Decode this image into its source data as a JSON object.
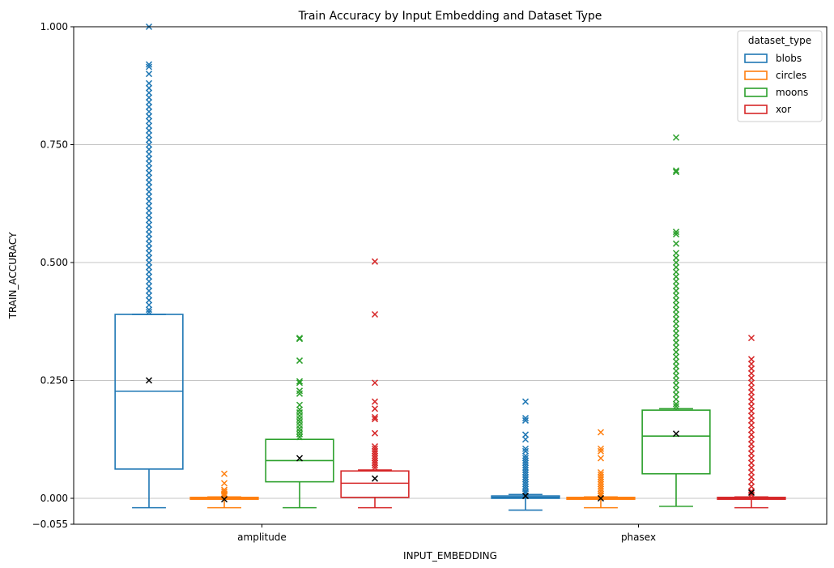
{
  "chart_data": {
    "type": "box",
    "title": "Train Accuracy by Input Embedding and Dataset Type",
    "xlabel": "INPUT_EMBEDDING",
    "ylabel": "TRAIN_ACCURACY",
    "ylim": [
      -0.055,
      1.0
    ],
    "yticks": [
      {
        "value": -0.055,
        "label": "−0.055"
      },
      {
        "value": 0.0,
        "label": "0.000"
      },
      {
        "value": 0.25,
        "label": "0.250"
      },
      {
        "value": 0.5,
        "label": "0.500"
      },
      {
        "value": 0.75,
        "label": "0.750"
      },
      {
        "value": 1.0,
        "label": "1.000"
      }
    ],
    "horizontal_grid": true,
    "categories": [
      "amplitude",
      "phasex"
    ],
    "legend": {
      "title": "dataset_type",
      "placement": "top-right"
    },
    "series": [
      {
        "name": "blobs",
        "color": "#1f77b4",
        "boxes": [
          {
            "whisker_low": -0.02,
            "q1": 0.062,
            "median": 0.227,
            "q3": 0.39,
            "whisker_high": 0.39,
            "mean": 0.25,
            "outliers": [
              1.0,
              0.92,
              0.915,
              0.9,
              0.88,
              0.87,
              0.86,
              0.85,
              0.84,
              0.83,
              0.82,
              0.81,
              0.8,
              0.79,
              0.78,
              0.77,
              0.76,
              0.75,
              0.74,
              0.73,
              0.72,
              0.71,
              0.7,
              0.69,
              0.68,
              0.67,
              0.66,
              0.65,
              0.64,
              0.63,
              0.62,
              0.61,
              0.6,
              0.59,
              0.58,
              0.57,
              0.56,
              0.55,
              0.54,
              0.53,
              0.52,
              0.51,
              0.5,
              0.49,
              0.48,
              0.47,
              0.46,
              0.45,
              0.44,
              0.43,
              0.42,
              0.41,
              0.4,
              0.395
            ]
          },
          {
            "whisker_low": -0.025,
            "q1": 0.0,
            "median": 0.002,
            "q3": 0.005,
            "whisker_high": 0.008,
            "mean": 0.005,
            "outliers": [
              0.205,
              0.17,
              0.165,
              0.135,
              0.125,
              0.105,
              0.1,
              0.09,
              0.085,
              0.08,
              0.075,
              0.07,
              0.065,
              0.06,
              0.055,
              0.05,
              0.045,
              0.04,
              0.035,
              0.03,
              0.025,
              0.02,
              0.015,
              0.012
            ]
          }
        ]
      },
      {
        "name": "circles",
        "color": "#ff7f0e",
        "boxes": [
          {
            "whisker_low": -0.02,
            "q1": -0.002,
            "median": 0.0,
            "q3": 0.002,
            "whisker_high": 0.003,
            "mean": -0.002,
            "outliers": [
              0.052,
              0.032,
              0.018,
              0.014,
              0.01,
              0.008,
              0.006
            ]
          },
          {
            "whisker_low": -0.02,
            "q1": -0.002,
            "median": 0.0,
            "q3": 0.002,
            "whisker_high": 0.003,
            "mean": 0.0,
            "outliers": [
              0.14,
              0.105,
              0.1,
              0.085,
              0.055,
              0.05,
              0.045,
              0.04,
              0.035,
              0.03,
              0.025,
              0.02,
              0.015,
              0.01,
              0.006
            ]
          }
        ]
      },
      {
        "name": "moons",
        "color": "#2ca02c",
        "boxes": [
          {
            "whisker_low": -0.02,
            "q1": 0.035,
            "median": 0.08,
            "q3": 0.125,
            "whisker_high": 0.125,
            "mean": 0.085,
            "outliers": [
              0.34,
              0.338,
              0.292,
              0.248,
              0.245,
              0.228,
              0.222,
              0.198,
              0.188,
              0.182,
              0.175,
              0.168,
              0.162,
              0.155,
              0.148,
              0.142,
              0.136,
              0.13
            ]
          },
          {
            "whisker_low": -0.017,
            "q1": 0.052,
            "median": 0.132,
            "q3": 0.187,
            "whisker_high": 0.19,
            "mean": 0.137,
            "outliers": [
              0.765,
              0.695,
              0.692,
              0.565,
              0.56,
              0.54,
              0.52,
              0.51,
              0.5,
              0.49,
              0.48,
              0.47,
              0.46,
              0.45,
              0.44,
              0.43,
              0.42,
              0.41,
              0.4,
              0.39,
              0.38,
              0.37,
              0.36,
              0.35,
              0.34,
              0.33,
              0.32,
              0.31,
              0.3,
              0.29,
              0.28,
              0.27,
              0.26,
              0.25,
              0.24,
              0.23,
              0.22,
              0.21,
              0.2,
              0.195
            ]
          }
        ]
      },
      {
        "name": "xor",
        "color": "#d62728",
        "boxes": [
          {
            "whisker_low": -0.02,
            "q1": 0.002,
            "median": 0.032,
            "q3": 0.058,
            "whisker_high": 0.06,
            "mean": 0.042,
            "outliers": [
              0.502,
              0.39,
              0.245,
              0.205,
              0.19,
              0.172,
              0.168,
              0.138,
              0.11,
              0.105,
              0.1,
              0.095,
              0.09,
              0.085,
              0.08,
              0.075,
              0.07,
              0.065
            ]
          },
          {
            "whisker_low": -0.02,
            "q1": -0.002,
            "median": 0.0,
            "q3": 0.002,
            "whisker_high": 0.003,
            "mean": 0.012,
            "outliers": [
              0.34,
              0.295,
              0.285,
              0.275,
              0.265,
              0.255,
              0.245,
              0.235,
              0.225,
              0.215,
              0.205,
              0.195,
              0.185,
              0.175,
              0.165,
              0.155,
              0.145,
              0.135,
              0.125,
              0.115,
              0.105,
              0.095,
              0.085,
              0.075,
              0.065,
              0.055,
              0.045,
              0.035,
              0.025,
              0.015,
              0.008
            ]
          }
        ]
      }
    ],
    "mean_marker_color": "#000000"
  }
}
